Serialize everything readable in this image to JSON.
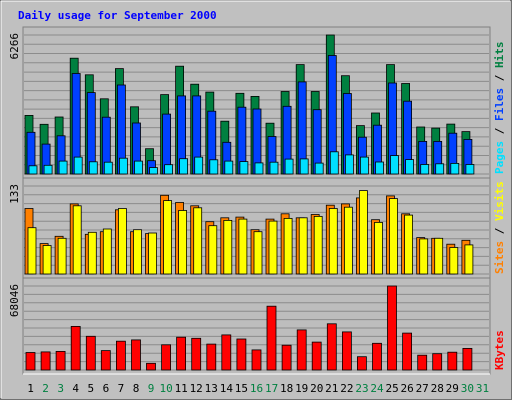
{
  "chart_data": {
    "type": "bar",
    "title": "Daily usage for September 2000",
    "colors": {
      "background": "#c0c0c0",
      "border": "#707070",
      "plot": "#bdbdbd",
      "gridline": "#8c8c8c",
      "title": "#0000ff",
      "axis_text": "#000000",
      "weekend_label": "#008040",
      "pages": "#00e0ff",
      "files": "#0040ff",
      "hits": "#008040",
      "sites": "#ff8000",
      "visits": "#ffff00",
      "kbytes": "#ff0000"
    },
    "days": [
      {
        "label": "1",
        "weekend": false
      },
      {
        "label": "2",
        "weekend": true
      },
      {
        "label": "3",
        "weekend": true
      },
      {
        "label": "4",
        "weekend": false
      },
      {
        "label": "5",
        "weekend": false
      },
      {
        "label": "6",
        "weekend": false
      },
      {
        "label": "7",
        "weekend": false
      },
      {
        "label": "8",
        "weekend": false
      },
      {
        "label": "9",
        "weekend": true
      },
      {
        "label": "10",
        "weekend": true
      },
      {
        "label": "11",
        "weekend": false
      },
      {
        "label": "12",
        "weekend": false
      },
      {
        "label": "13",
        "weekend": false
      },
      {
        "label": "14",
        "weekend": false
      },
      {
        "label": "15",
        "weekend": false
      },
      {
        "label": "16",
        "weekend": true
      },
      {
        "label": "17",
        "weekend": true
      },
      {
        "label": "18",
        "weekend": false
      },
      {
        "label": "19",
        "weekend": false
      },
      {
        "label": "20",
        "weekend": false
      },
      {
        "label": "21",
        "weekend": false
      },
      {
        "label": "22",
        "weekend": false
      },
      {
        "label": "23",
        "weekend": true
      },
      {
        "label": "24",
        "weekend": true
      },
      {
        "label": "25",
        "weekend": false
      },
      {
        "label": "26",
        "weekend": false
      },
      {
        "label": "27",
        "weekend": false
      },
      {
        "label": "28",
        "weekend": false
      },
      {
        "label": "29",
        "weekend": false
      },
      {
        "label": "30",
        "weekend": true
      },
      {
        "label": "31",
        "weekend": true
      }
    ],
    "panels": [
      {
        "id": "hits",
        "max_label": "6266",
        "ylim": [
          0,
          6266
        ],
        "legend": [
          {
            "text": "Pages",
            "color": "#00e0ff"
          },
          {
            "text": " / ",
            "color": "#000000"
          },
          {
            "text": "Files",
            "color": "#0040ff"
          },
          {
            "text": " / ",
            "color": "#000000"
          },
          {
            "text": "Hits",
            "color": "#008040"
          }
        ],
        "series": [
          {
            "name": "Hits",
            "color": "#008040",
            "values": [
              2640,
              2240,
              2570,
              5220,
              4470,
              3390,
              4750,
              3030,
              1140,
              3580,
              4860,
              4050,
              3690,
              2380,
              3640,
              3500,
              2290,
              3720,
              4930,
              3720,
              6266,
              4430,
              2180,
              2750,
              4930,
              4080,
              2120,
              2070,
              2250,
              1910
            ]
          },
          {
            "name": "Files",
            "color": "#0040ff",
            "values": [
              1880,
              1350,
              1720,
              4530,
              3670,
              2560,
              4010,
              2300,
              600,
              2700,
              3520,
              3520,
              2830,
              1430,
              3010,
              2930,
              1690,
              3050,
              4150,
              2900,
              5340,
              3630,
              1660,
              2200,
              4100,
              3280,
              1470,
              1470,
              1840,
              1560
            ]
          },
          {
            "name": "Pages",
            "color": "#00e0ff",
            "values": [
              370,
              390,
              580,
              760,
              550,
              530,
              710,
              580,
              290,
              420,
              690,
              760,
              640,
              580,
              560,
              500,
              530,
              670,
              680,
              490,
              1000,
              860,
              760,
              540,
              830,
              650,
              430,
              460,
              480,
              430
            ]
          }
        ]
      },
      {
        "id": "visits",
        "max_label": "133",
        "ylim": [
          0,
          133
        ],
        "legend": [
          {
            "text": "Sites",
            "color": "#ff8000"
          },
          {
            "text": " / ",
            "color": "#000000"
          },
          {
            "text": "Visits",
            "color": "#ffff00"
          }
        ],
        "series": [
          {
            "name": "Sites",
            "color": "#ff8000",
            "values": [
              99,
              46,
              57,
              106,
              60,
              64,
              97,
              64,
              61,
              119,
              108,
              103,
              79,
              85,
              86,
              67,
              83,
              91,
              85,
              90,
              104,
              106,
              115,
              82,
              118,
              91,
              55,
              54,
              45,
              51
            ]
          },
          {
            "name": "Visits",
            "color": "#ffff00",
            "values": [
              70,
              43,
              54,
              103,
              63,
              68,
              99,
              67,
              62,
              111,
              96,
              100,
              73,
              81,
              83,
              64,
              80,
              84,
              85,
              87,
              99,
              101,
              126,
              78,
              114,
              89,
              53,
              54,
              40,
              44
            ]
          }
        ]
      },
      {
        "id": "kbytes",
        "max_label": "68046",
        "ylim": [
          0,
          68046
        ],
        "legend": [
          {
            "text": "KBytes",
            "color": "#ff0000"
          }
        ],
        "series": [
          {
            "name": "KBytes",
            "color": "#ff0000",
            "values": [
              14200,
              14700,
              15100,
              35300,
              27300,
              15700,
              23300,
              24400,
              5400,
              20400,
              26600,
              25700,
              21000,
              28400,
              25100,
              16300,
              51700,
              20100,
              32500,
              22600,
              37400,
              30900,
              10800,
              21600,
              68046,
              29900,
              12000,
              13200,
              14400,
              17500
            ]
          }
        ]
      }
    ]
  }
}
